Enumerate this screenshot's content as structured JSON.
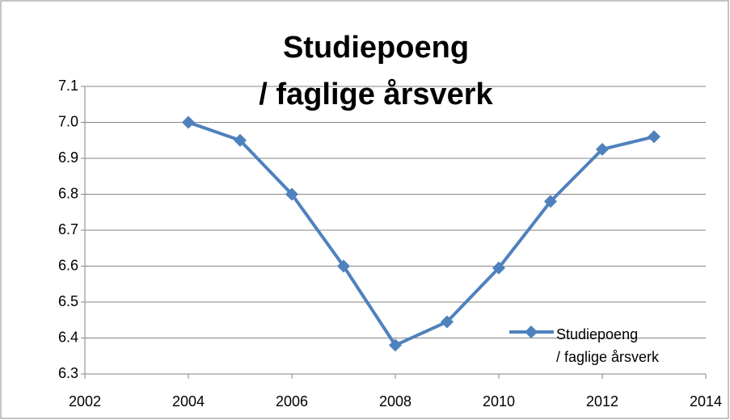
{
  "chart_data": {
    "type": "line",
    "title": "Studiepoeng\n/ faglige årsverk",
    "x": [
      2004,
      2005,
      2006,
      2007,
      2008,
      2009,
      2010,
      2011,
      2012,
      2013
    ],
    "series": [
      {
        "name": "Studiepoeng\n/ faglige årsverk",
        "color": "#4f81bd",
        "values": [
          7.0,
          6.95,
          6.8,
          6.6,
          6.38,
          6.445,
          6.595,
          6.78,
          6.925,
          6.96
        ]
      }
    ],
    "xlim": [
      2002,
      2014
    ],
    "xticks": [
      2002,
      2004,
      2006,
      2008,
      2010,
      2012,
      2014
    ],
    "ylim": [
      6.3,
      7.1
    ],
    "yticks": [
      6.3,
      6.4,
      6.5,
      6.6,
      6.7,
      6.8,
      6.9,
      {
        "value": 7,
        "label": "7.0"
      },
      7.1
    ],
    "grid": true,
    "legend": "lower-right"
  }
}
